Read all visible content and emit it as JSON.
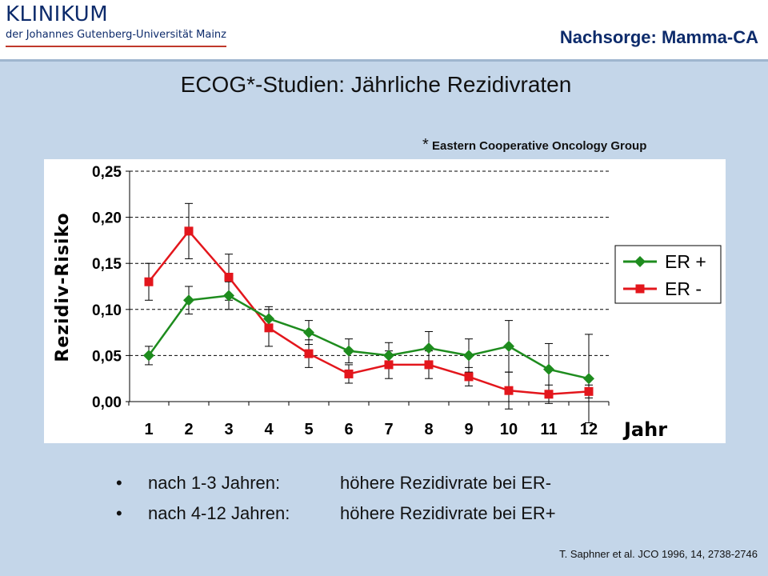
{
  "header": {
    "logo_main": "KLINIKUM",
    "logo_sub": "der Johannes Gutenberg-Universität Mainz",
    "section": "Nachsorge: Mamma-CA"
  },
  "slide": {
    "title": "ECOG*-Studien: Jährliche Rezidivraten",
    "footnote_star": "*",
    "footnote_text": "Eastern Cooperative Oncology Group"
  },
  "chart_data": {
    "type": "line",
    "ylabel": "Rezidiv-Risiko",
    "xlabel": "Jahr",
    "categories": [
      "1",
      "2",
      "3",
      "4",
      "5",
      "6",
      "7",
      "8",
      "9",
      "10",
      "11",
      "12"
    ],
    "ylim": [
      0,
      0.25
    ],
    "yticks": [
      "0,00",
      "0,05",
      "0,10",
      "0,15",
      "0,20",
      "0,25"
    ],
    "ytick_values": [
      0,
      0.05,
      0.1,
      0.15,
      0.2,
      0.25
    ],
    "grid": "horizontal dashed",
    "legend_position": "right",
    "series": [
      {
        "name": "ER +",
        "color": "#1e8c1e",
        "marker": "diamond",
        "values": [
          0.05,
          0.11,
          0.115,
          0.09,
          0.075,
          0.055,
          0.05,
          0.058,
          0.05,
          0.06,
          0.035,
          0.025
        ],
        "error": [
          0.01,
          0.015,
          0.015,
          0.013,
          0.013,
          0.013,
          0.014,
          0.018,
          0.018,
          0.028,
          0.028,
          0.048
        ]
      },
      {
        "name": "ER -",
        "color": "#e3161c",
        "marker": "square",
        "values": [
          0.13,
          0.185,
          0.135,
          0.08,
          0.052,
          0.03,
          0.04,
          0.04,
          0.027,
          0.012,
          0.008,
          0.011
        ],
        "error": [
          0.02,
          0.03,
          0.025,
          0.02,
          0.015,
          0.01,
          0.015,
          0.015,
          0.01,
          0.02,
          0.01,
          0.007
        ]
      }
    ]
  },
  "bullets": [
    {
      "mark": "•",
      "label": "nach 1-3 Jahren:",
      "text": "höhere Rezidivrate bei ER-"
    },
    {
      "mark": "•",
      "label": "nach 4-12 Jahren:",
      "text": "höhere Rezidivrate bei ER+"
    }
  ],
  "citation": "T. Saphner et al. JCO 1996, 14, 2738-2746"
}
